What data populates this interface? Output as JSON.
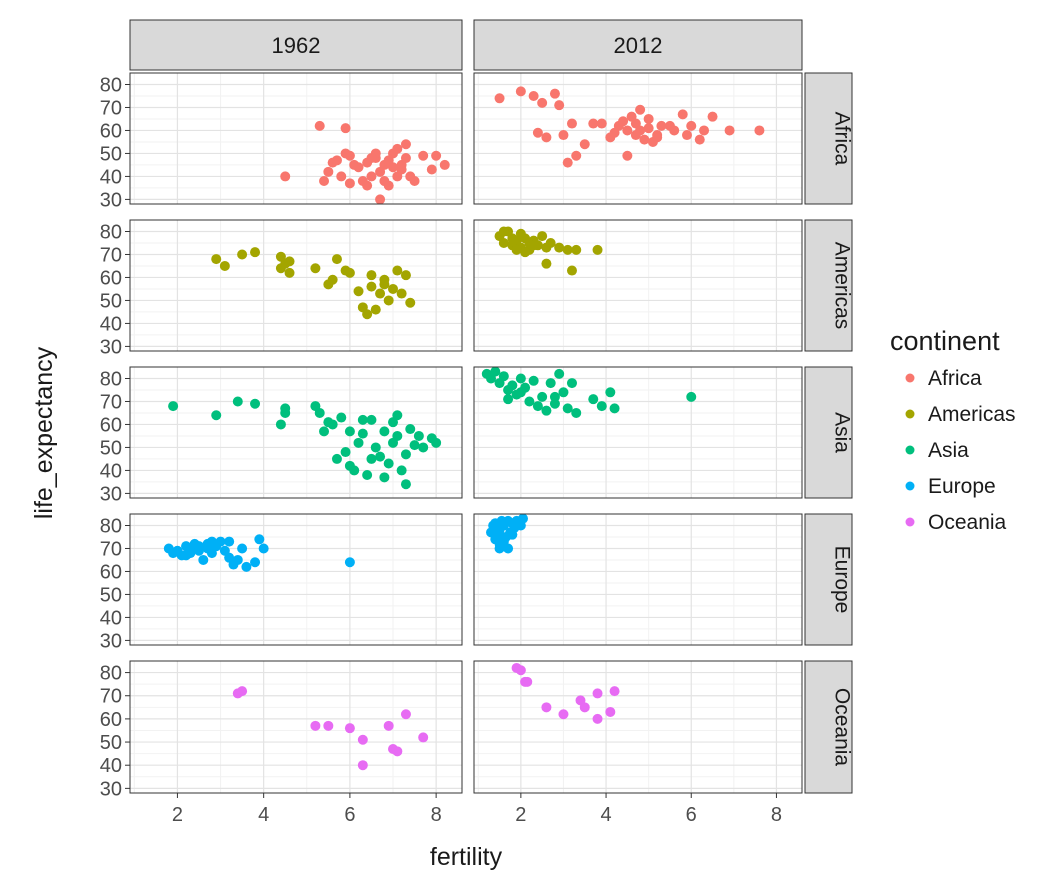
{
  "chart_data": {
    "type": "scatter",
    "xlabel": "fertility",
    "ylabel": "life_expectancy",
    "xlim": [
      0.9,
      8.6
    ],
    "ylim": [
      28,
      85
    ],
    "xticks": [
      2,
      4,
      6,
      8
    ],
    "yticks": [
      30,
      40,
      50,
      60,
      70,
      80
    ],
    "grid": true,
    "legend": {
      "title": "continent",
      "position": "right"
    },
    "columns": [
      "1962",
      "2012"
    ],
    "rows": [
      "Africa",
      "Americas",
      "Asia",
      "Europe",
      "Oceania"
    ],
    "colors": {
      "Africa": "#F8766D",
      "Americas": "#A3A500",
      "Asia": "#00BF7D",
      "Europe": "#00B0F6",
      "Oceania": "#E76BF3"
    },
    "series": [
      {
        "name": "Africa",
        "year": "1962",
        "points": [
          [
            4.5,
            40
          ],
          [
            5.3,
            62
          ],
          [
            5.9,
            61
          ],
          [
            5.4,
            38
          ],
          [
            5.5,
            42
          ],
          [
            5.6,
            46
          ],
          [
            5.7,
            47
          ],
          [
            5.8,
            40
          ],
          [
            5.9,
            50
          ],
          [
            6.0,
            49
          ],
          [
            6.0,
            37
          ],
          [
            6.1,
            45
          ],
          [
            6.2,
            44
          ],
          [
            6.3,
            38
          ],
          [
            6.4,
            36
          ],
          [
            6.4,
            46
          ],
          [
            6.5,
            40
          ],
          [
            6.6,
            48
          ],
          [
            6.6,
            50
          ],
          [
            6.7,
            30
          ],
          [
            6.7,
            42
          ],
          [
            6.8,
            45
          ],
          [
            6.8,
            38
          ],
          [
            6.9,
            47
          ],
          [
            7.0,
            44
          ],
          [
            7.0,
            50
          ],
          [
            7.1,
            52
          ],
          [
            7.1,
            40
          ],
          [
            7.2,
            45
          ],
          [
            7.3,
            48
          ],
          [
            7.3,
            54
          ],
          [
            7.4,
            40
          ],
          [
            7.5,
            38
          ],
          [
            7.7,
            49
          ],
          [
            7.9,
            43
          ],
          [
            8.0,
            49
          ],
          [
            8.2,
            45
          ],
          [
            6.9,
            36
          ],
          [
            7.2,
            43
          ],
          [
            6.5,
            48
          ]
        ]
      },
      {
        "name": "Africa",
        "year": "2012",
        "points": [
          [
            1.5,
            74
          ],
          [
            2.0,
            77
          ],
          [
            2.3,
            75
          ],
          [
            2.5,
            72
          ],
          [
            2.8,
            76
          ],
          [
            2.9,
            71
          ],
          [
            2.4,
            59
          ],
          [
            2.6,
            57
          ],
          [
            3.0,
            58
          ],
          [
            3.1,
            46
          ],
          [
            3.2,
            63
          ],
          [
            3.3,
            49
          ],
          [
            3.5,
            54
          ],
          [
            3.7,
            63
          ],
          [
            3.9,
            63
          ],
          [
            4.1,
            57
          ],
          [
            4.3,
            62
          ],
          [
            4.4,
            64
          ],
          [
            4.5,
            49
          ],
          [
            4.5,
            60
          ],
          [
            4.6,
            66
          ],
          [
            4.7,
            63
          ],
          [
            4.7,
            58
          ],
          [
            4.8,
            60
          ],
          [
            4.9,
            56
          ],
          [
            5.0,
            61
          ],
          [
            5.0,
            65
          ],
          [
            5.1,
            55
          ],
          [
            5.2,
            58
          ],
          [
            5.3,
            62
          ],
          [
            5.5,
            62
          ],
          [
            5.6,
            60
          ],
          [
            5.8,
            67
          ],
          [
            5.9,
            58
          ],
          [
            6.0,
            62
          ],
          [
            6.2,
            56
          ],
          [
            6.3,
            60
          ],
          [
            6.5,
            66
          ],
          [
            6.9,
            60
          ],
          [
            7.6,
            60
          ],
          [
            4.8,
            69
          ],
          [
            5.2,
            57
          ],
          [
            4.2,
            59
          ]
        ]
      },
      {
        "name": "Americas",
        "year": "1962",
        "points": [
          [
            2.9,
            68
          ],
          [
            3.1,
            65
          ],
          [
            3.5,
            70
          ],
          [
            3.8,
            71
          ],
          [
            4.4,
            64
          ],
          [
            4.4,
            69
          ],
          [
            4.5,
            66
          ],
          [
            4.6,
            62
          ],
          [
            4.6,
            67
          ],
          [
            5.2,
            64
          ],
          [
            5.5,
            57
          ],
          [
            5.6,
            59
          ],
          [
            5.7,
            68
          ],
          [
            5.9,
            63
          ],
          [
            6.0,
            62
          ],
          [
            6.2,
            54
          ],
          [
            6.3,
            47
          ],
          [
            6.4,
            44
          ],
          [
            6.5,
            61
          ],
          [
            6.6,
            46
          ],
          [
            6.7,
            53
          ],
          [
            6.8,
            57
          ],
          [
            6.8,
            59
          ],
          [
            6.9,
            50
          ],
          [
            7.0,
            55
          ],
          [
            7.1,
            63
          ],
          [
            7.2,
            53
          ],
          [
            7.3,
            61
          ],
          [
            7.4,
            49
          ],
          [
            6.5,
            56
          ]
        ]
      },
      {
        "name": "Americas",
        "year": "2012",
        "points": [
          [
            1.5,
            78
          ],
          [
            1.6,
            75
          ],
          [
            1.7,
            80
          ],
          [
            1.8,
            77
          ],
          [
            1.8,
            74
          ],
          [
            1.9,
            76
          ],
          [
            2.0,
            73
          ],
          [
            2.0,
            79
          ],
          [
            2.1,
            77
          ],
          [
            2.2,
            75
          ],
          [
            2.2,
            72
          ],
          [
            2.3,
            76
          ],
          [
            2.4,
            74
          ],
          [
            2.5,
            78
          ],
          [
            2.6,
            73
          ],
          [
            2.6,
            66
          ],
          [
            2.7,
            75
          ],
          [
            2.9,
            73
          ],
          [
            3.1,
            72
          ],
          [
            3.2,
            63
          ],
          [
            3.3,
            72
          ],
          [
            3.8,
            72
          ],
          [
            2.1,
            71
          ],
          [
            1.9,
            72
          ],
          [
            1.6,
            80
          ],
          [
            2.3,
            74
          ]
        ]
      },
      {
        "name": "Asia",
        "year": "1962",
        "points": [
          [
            1.9,
            68
          ],
          [
            2.9,
            64
          ],
          [
            3.4,
            70
          ],
          [
            3.8,
            69
          ],
          [
            4.4,
            60
          ],
          [
            4.5,
            67
          ],
          [
            4.5,
            65
          ],
          [
            5.2,
            68
          ],
          [
            5.3,
            65
          ],
          [
            5.4,
            57
          ],
          [
            5.5,
            61
          ],
          [
            5.6,
            60
          ],
          [
            5.8,
            63
          ],
          [
            5.9,
            48
          ],
          [
            6.0,
            42
          ],
          [
            6.0,
            57
          ],
          [
            6.1,
            40
          ],
          [
            6.2,
            52
          ],
          [
            6.3,
            56
          ],
          [
            6.4,
            38
          ],
          [
            6.5,
            62
          ],
          [
            6.6,
            50
          ],
          [
            6.7,
            46
          ],
          [
            6.8,
            37
          ],
          [
            6.8,
            57
          ],
          [
            6.9,
            43
          ],
          [
            7.0,
            52
          ],
          [
            7.0,
            61
          ],
          [
            7.1,
            55
          ],
          [
            7.2,
            40
          ],
          [
            7.3,
            47
          ],
          [
            7.3,
            34
          ],
          [
            7.4,
            58
          ],
          [
            7.5,
            51
          ],
          [
            7.6,
            55
          ],
          [
            7.7,
            50
          ],
          [
            7.9,
            54
          ],
          [
            8.0,
            52
          ],
          [
            6.5,
            45
          ],
          [
            7.1,
            64
          ],
          [
            6.3,
            62
          ],
          [
            5.7,
            45
          ]
        ]
      },
      {
        "name": "Asia",
        "year": "2012",
        "points": [
          [
            1.2,
            82
          ],
          [
            1.3,
            80
          ],
          [
            1.4,
            83
          ],
          [
            1.5,
            78
          ],
          [
            1.6,
            81
          ],
          [
            1.7,
            75
          ],
          [
            1.8,
            77
          ],
          [
            1.9,
            73
          ],
          [
            2.0,
            80
          ],
          [
            2.1,
            76
          ],
          [
            2.2,
            70
          ],
          [
            2.3,
            79
          ],
          [
            2.4,
            68
          ],
          [
            2.5,
            72
          ],
          [
            2.6,
            66
          ],
          [
            2.7,
            78
          ],
          [
            2.8,
            69
          ],
          [
            2.9,
            82
          ],
          [
            3.0,
            74
          ],
          [
            3.1,
            67
          ],
          [
            3.2,
            78
          ],
          [
            3.3,
            65
          ],
          [
            3.7,
            71
          ],
          [
            3.9,
            68
          ],
          [
            4.1,
            74
          ],
          [
            4.2,
            67
          ],
          [
            6.0,
            72
          ],
          [
            2.0,
            74
          ],
          [
            1.7,
            71
          ],
          [
            2.8,
            72
          ]
        ]
      },
      {
        "name": "Europe",
        "year": "1962",
        "points": [
          [
            1.8,
            70
          ],
          [
            1.9,
            68
          ],
          [
            2.0,
            69
          ],
          [
            2.1,
            67
          ],
          [
            2.2,
            71
          ],
          [
            2.3,
            70
          ],
          [
            2.3,
            68
          ],
          [
            2.4,
            72
          ],
          [
            2.5,
            69
          ],
          [
            2.5,
            71
          ],
          [
            2.6,
            65
          ],
          [
            2.7,
            70
          ],
          [
            2.7,
            72
          ],
          [
            2.8,
            68
          ],
          [
            2.9,
            71
          ],
          [
            3.0,
            73
          ],
          [
            3.1,
            69
          ],
          [
            3.2,
            73
          ],
          [
            3.2,
            66
          ],
          [
            3.3,
            63
          ],
          [
            3.4,
            65
          ],
          [
            3.5,
            70
          ],
          [
            3.6,
            62
          ],
          [
            3.8,
            64
          ],
          [
            3.9,
            74
          ],
          [
            4.0,
            70
          ],
          [
            6.0,
            64
          ],
          [
            2.2,
            67
          ],
          [
            2.8,
            73
          ]
        ]
      },
      {
        "name": "Europe",
        "year": "2012",
        "points": [
          [
            1.3,
            77
          ],
          [
            1.35,
            80
          ],
          [
            1.4,
            74
          ],
          [
            1.4,
            81
          ],
          [
            1.45,
            76
          ],
          [
            1.5,
            70
          ],
          [
            1.5,
            78
          ],
          [
            1.55,
            82
          ],
          [
            1.6,
            73
          ],
          [
            1.6,
            80
          ],
          [
            1.65,
            75
          ],
          [
            1.7,
            70
          ],
          [
            1.7,
            82
          ],
          [
            1.75,
            77
          ],
          [
            1.8,
            81
          ],
          [
            1.85,
            79
          ],
          [
            1.9,
            82
          ],
          [
            2.0,
            80
          ],
          [
            2.05,
            83
          ],
          [
            1.5,
            72
          ],
          [
            1.6,
            71
          ],
          [
            1.4,
            78
          ],
          [
            1.8,
            76
          ],
          [
            1.55,
            75
          ]
        ]
      },
      {
        "name": "Oceania",
        "year": "1962",
        "points": [
          [
            3.4,
            71
          ],
          [
            3.5,
            72
          ],
          [
            5.2,
            57
          ],
          [
            5.5,
            57
          ],
          [
            6.0,
            56
          ],
          [
            6.3,
            51
          ],
          [
            6.3,
            40
          ],
          [
            6.9,
            57
          ],
          [
            7.0,
            47
          ],
          [
            7.1,
            46
          ],
          [
            7.3,
            62
          ],
          [
            7.7,
            52
          ]
        ]
      },
      {
        "name": "Oceania",
        "year": "2012",
        "points": [
          [
            1.9,
            82
          ],
          [
            2.0,
            81
          ],
          [
            2.1,
            76
          ],
          [
            2.15,
            76
          ],
          [
            2.6,
            65
          ],
          [
            3.0,
            62
          ],
          [
            3.4,
            68
          ],
          [
            3.5,
            65
          ],
          [
            3.8,
            71
          ],
          [
            3.8,
            60
          ],
          [
            4.1,
            63
          ],
          [
            4.2,
            72
          ]
        ]
      }
    ]
  }
}
